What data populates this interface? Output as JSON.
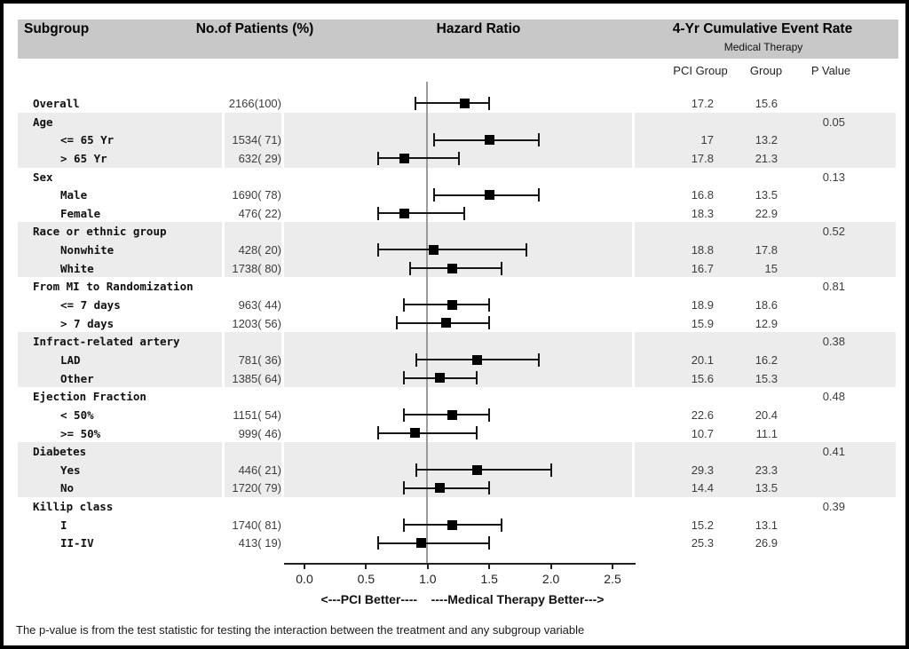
{
  "header": {
    "col_subgroup": "Subgroup",
    "col_patients": "No.of Patients (%)",
    "col_hazard": "Hazard Ratio",
    "col_event_rate": "4-Yr Cumulative Event Rate",
    "subcol_medical_therapy": "Medical Therapy",
    "subcol_pci_group": "PCI Group",
    "subcol_group": "Group",
    "subcol_p_value": "P Value"
  },
  "footnote": "The p-value is from the test statistic for testing the interaction between the treatment and any subgroup variable",
  "colors": {
    "header_band": "#c8c8c8",
    "row_shade": "#ececec",
    "marker": "#000000",
    "ci_line": "#161616",
    "ref_line": "#9a9a9a"
  },
  "chart_data": {
    "type": "forest",
    "title": "Hazard Ratio",
    "x_axis": {
      "range": [
        -0.15,
        2.68
      ],
      "ref_line": 1.0,
      "ticks": [
        {
          "v": 0.0,
          "t": "0.0"
        },
        {
          "v": 0.5,
          "t": "0.5"
        },
        {
          "v": 1.0,
          "t": "1.0"
        },
        {
          "v": 1.5,
          "t": "1.5"
        },
        {
          "v": 2.0,
          "t": "2.0"
        },
        {
          "v": 2.5,
          "t": "2.5"
        }
      ],
      "caption": "<---PCI Better----    ----Medical Therapy Better--->"
    },
    "rows": [
      {
        "label": "Overall",
        "indent": 0,
        "patients": "2166(100)",
        "hr": 1.3,
        "lo": 0.9,
        "hi": 1.5,
        "pci": "17.2",
        "mt": "15.6",
        "p": "",
        "shaded": false
      },
      {
        "label": "Age",
        "indent": 0,
        "p": "0.05",
        "shaded": true
      },
      {
        "label": "<= 65 Yr",
        "indent": 1,
        "patients": "1534( 71)",
        "hr": 1.5,
        "lo": 1.05,
        "hi": 1.9,
        "pci": "17",
        "mt": "13.2",
        "shaded": true
      },
      {
        "label": "> 65 Yr",
        "indent": 1,
        "patients": "632( 29)",
        "hr": 0.81,
        "lo": 0.6,
        "hi": 1.25,
        "pci": "17.8",
        "mt": "21.3",
        "shaded": true
      },
      {
        "label": "Sex",
        "indent": 0,
        "p": "0.13",
        "shaded": false
      },
      {
        "label": "Male",
        "indent": 1,
        "patients": "1690( 78)",
        "hr": 1.5,
        "lo": 1.05,
        "hi": 1.9,
        "pci": "16.8",
        "mt": "13.5",
        "shaded": false
      },
      {
        "label": "Female",
        "indent": 1,
        "patients": "476( 22)",
        "hr": 0.81,
        "lo": 0.6,
        "hi": 1.3,
        "pci": "18.3",
        "mt": "22.9",
        "shaded": false
      },
      {
        "label": "Race or ethnic group",
        "indent": 0,
        "p": "0.52",
        "shaded": true
      },
      {
        "label": "Nonwhite",
        "indent": 1,
        "patients": "428( 20)",
        "hr": 1.05,
        "lo": 0.6,
        "hi": 1.8,
        "pci": "18.8",
        "mt": "17.8",
        "shaded": true
      },
      {
        "label": "White",
        "indent": 1,
        "patients": "1738( 80)",
        "hr": 1.2,
        "lo": 0.86,
        "hi": 1.6,
        "pci": "16.7",
        "mt": "15",
        "shaded": true
      },
      {
        "label": "From MI to Randomization",
        "indent": 0,
        "p": "0.81",
        "shaded": false
      },
      {
        "label": "<= 7 days",
        "indent": 1,
        "patients": "963( 44)",
        "hr": 1.2,
        "lo": 0.81,
        "hi": 1.5,
        "pci": "18.9",
        "mt": "18.6",
        "shaded": false
      },
      {
        "label": "> 7 days",
        "indent": 1,
        "patients": "1203( 56)",
        "hr": 1.15,
        "lo": 0.75,
        "hi": 1.5,
        "pci": "15.9",
        "mt": "12.9",
        "shaded": false
      },
      {
        "label": "Infract-related artery",
        "indent": 0,
        "p": "0.38",
        "shaded": true
      },
      {
        "label": "LAD",
        "indent": 1,
        "patients": "781( 36)",
        "hr": 1.4,
        "lo": 0.91,
        "hi": 1.9,
        "pci": "20.1",
        "mt": "16.2",
        "shaded": true
      },
      {
        "label": "Other",
        "indent": 1,
        "patients": "1385( 64)",
        "hr": 1.1,
        "lo": 0.81,
        "hi": 1.4,
        "pci": "15.6",
        "mt": "15.3",
        "shaded": true
      },
      {
        "label": "Ejection Fraction",
        "indent": 0,
        "p": "0.48",
        "shaded": false
      },
      {
        "label": "< 50%",
        "indent": 1,
        "patients": "1151( 54)",
        "hr": 1.2,
        "lo": 0.81,
        "hi": 1.5,
        "pci": "22.6",
        "mt": "20.4",
        "shaded": false
      },
      {
        "label": ">= 50%",
        "indent": 1,
        "patients": "999( 46)",
        "hr": 0.9,
        "lo": 0.6,
        "hi": 1.4,
        "pci": "10.7",
        "mt": "11.1",
        "shaded": false
      },
      {
        "label": "Diabetes",
        "indent": 0,
        "p": "0.41",
        "shaded": true
      },
      {
        "label": "Yes",
        "indent": 1,
        "patients": "446( 21)",
        "hr": 1.4,
        "lo": 0.91,
        "hi": 2.0,
        "pci": "29.3",
        "mt": "23.3",
        "shaded": true
      },
      {
        "label": "No",
        "indent": 1,
        "patients": "1720( 79)",
        "hr": 1.1,
        "lo": 0.81,
        "hi": 1.5,
        "pci": "14.4",
        "mt": "13.5",
        "shaded": true
      },
      {
        "label": "Killip class",
        "indent": 0,
        "p": "0.39",
        "shaded": false
      },
      {
        "label": "I",
        "indent": 1,
        "patients": "1740( 81)",
        "hr": 1.2,
        "lo": 0.81,
        "hi": 1.6,
        "pci": "15.2",
        "mt": "13.1",
        "shaded": false
      },
      {
        "label": "II-IV",
        "indent": 1,
        "patients": "413( 19)",
        "hr": 0.95,
        "lo": 0.6,
        "hi": 1.5,
        "pci": "25.3",
        "mt": "26.9",
        "shaded": false
      }
    ]
  }
}
